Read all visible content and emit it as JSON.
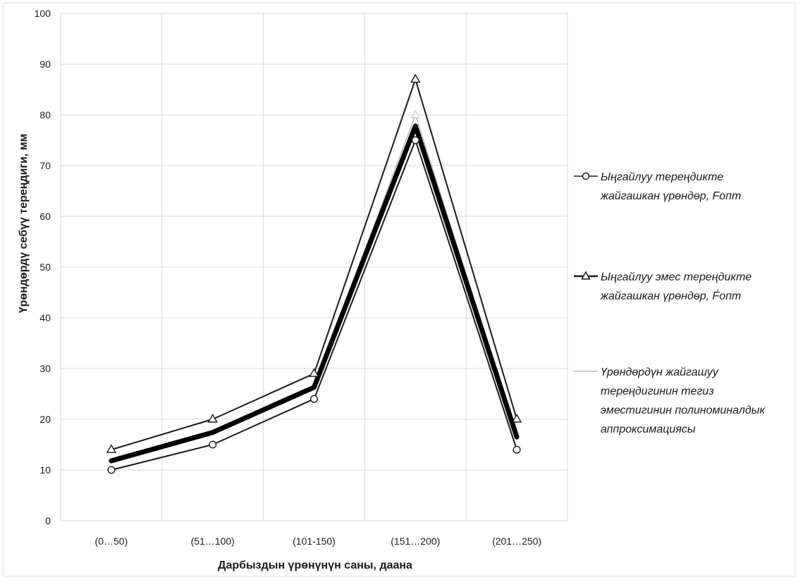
{
  "chart_data": {
    "type": "line",
    "categories": [
      "(0…50)",
      "(51…100)",
      "(101-150)",
      "(151…200)",
      "(201…250)"
    ],
    "xlabel": "Дарбыздын үрөнүнүн саны, даана",
    "ylabel": "Үрөндөрдү себүү тереңдиги, мм",
    "ylim": [
      0,
      100
    ],
    "yticks": [
      0,
      10,
      20,
      30,
      40,
      50,
      60,
      70,
      80,
      90,
      100
    ],
    "grid": true,
    "legend_position": "right",
    "series": [
      {
        "name": "Ыңгайлуу тереңдикте жайгашкан үрөндөр, Fопт",
        "marker": "circle",
        "color": "#1a1a1a",
        "values": [
          10,
          15,
          24,
          75,
          14
        ]
      },
      {
        "name": "Ыңгайлуу эмес тереңдикте жайгашкан үрөндөр, F́опт",
        "marker": "triangle",
        "color": "#1a1a1a",
        "values": [
          14,
          20,
          29,
          87,
          20
        ]
      },
      {
        "name": "Үрөндөрдүн жайгашуу тереңдигинин тегиз эместигинин полиноминалдык аппроксимациясы",
        "marker": "none",
        "color": "#b8b8b8",
        "values": [
          12,
          17.5,
          26.5,
          80,
          17
        ]
      }
    ],
    "trend_line": {
      "color": "#000000",
      "values": [
        11.8,
        17.4,
        26.3,
        77.8,
        16.5
      ]
    }
  }
}
